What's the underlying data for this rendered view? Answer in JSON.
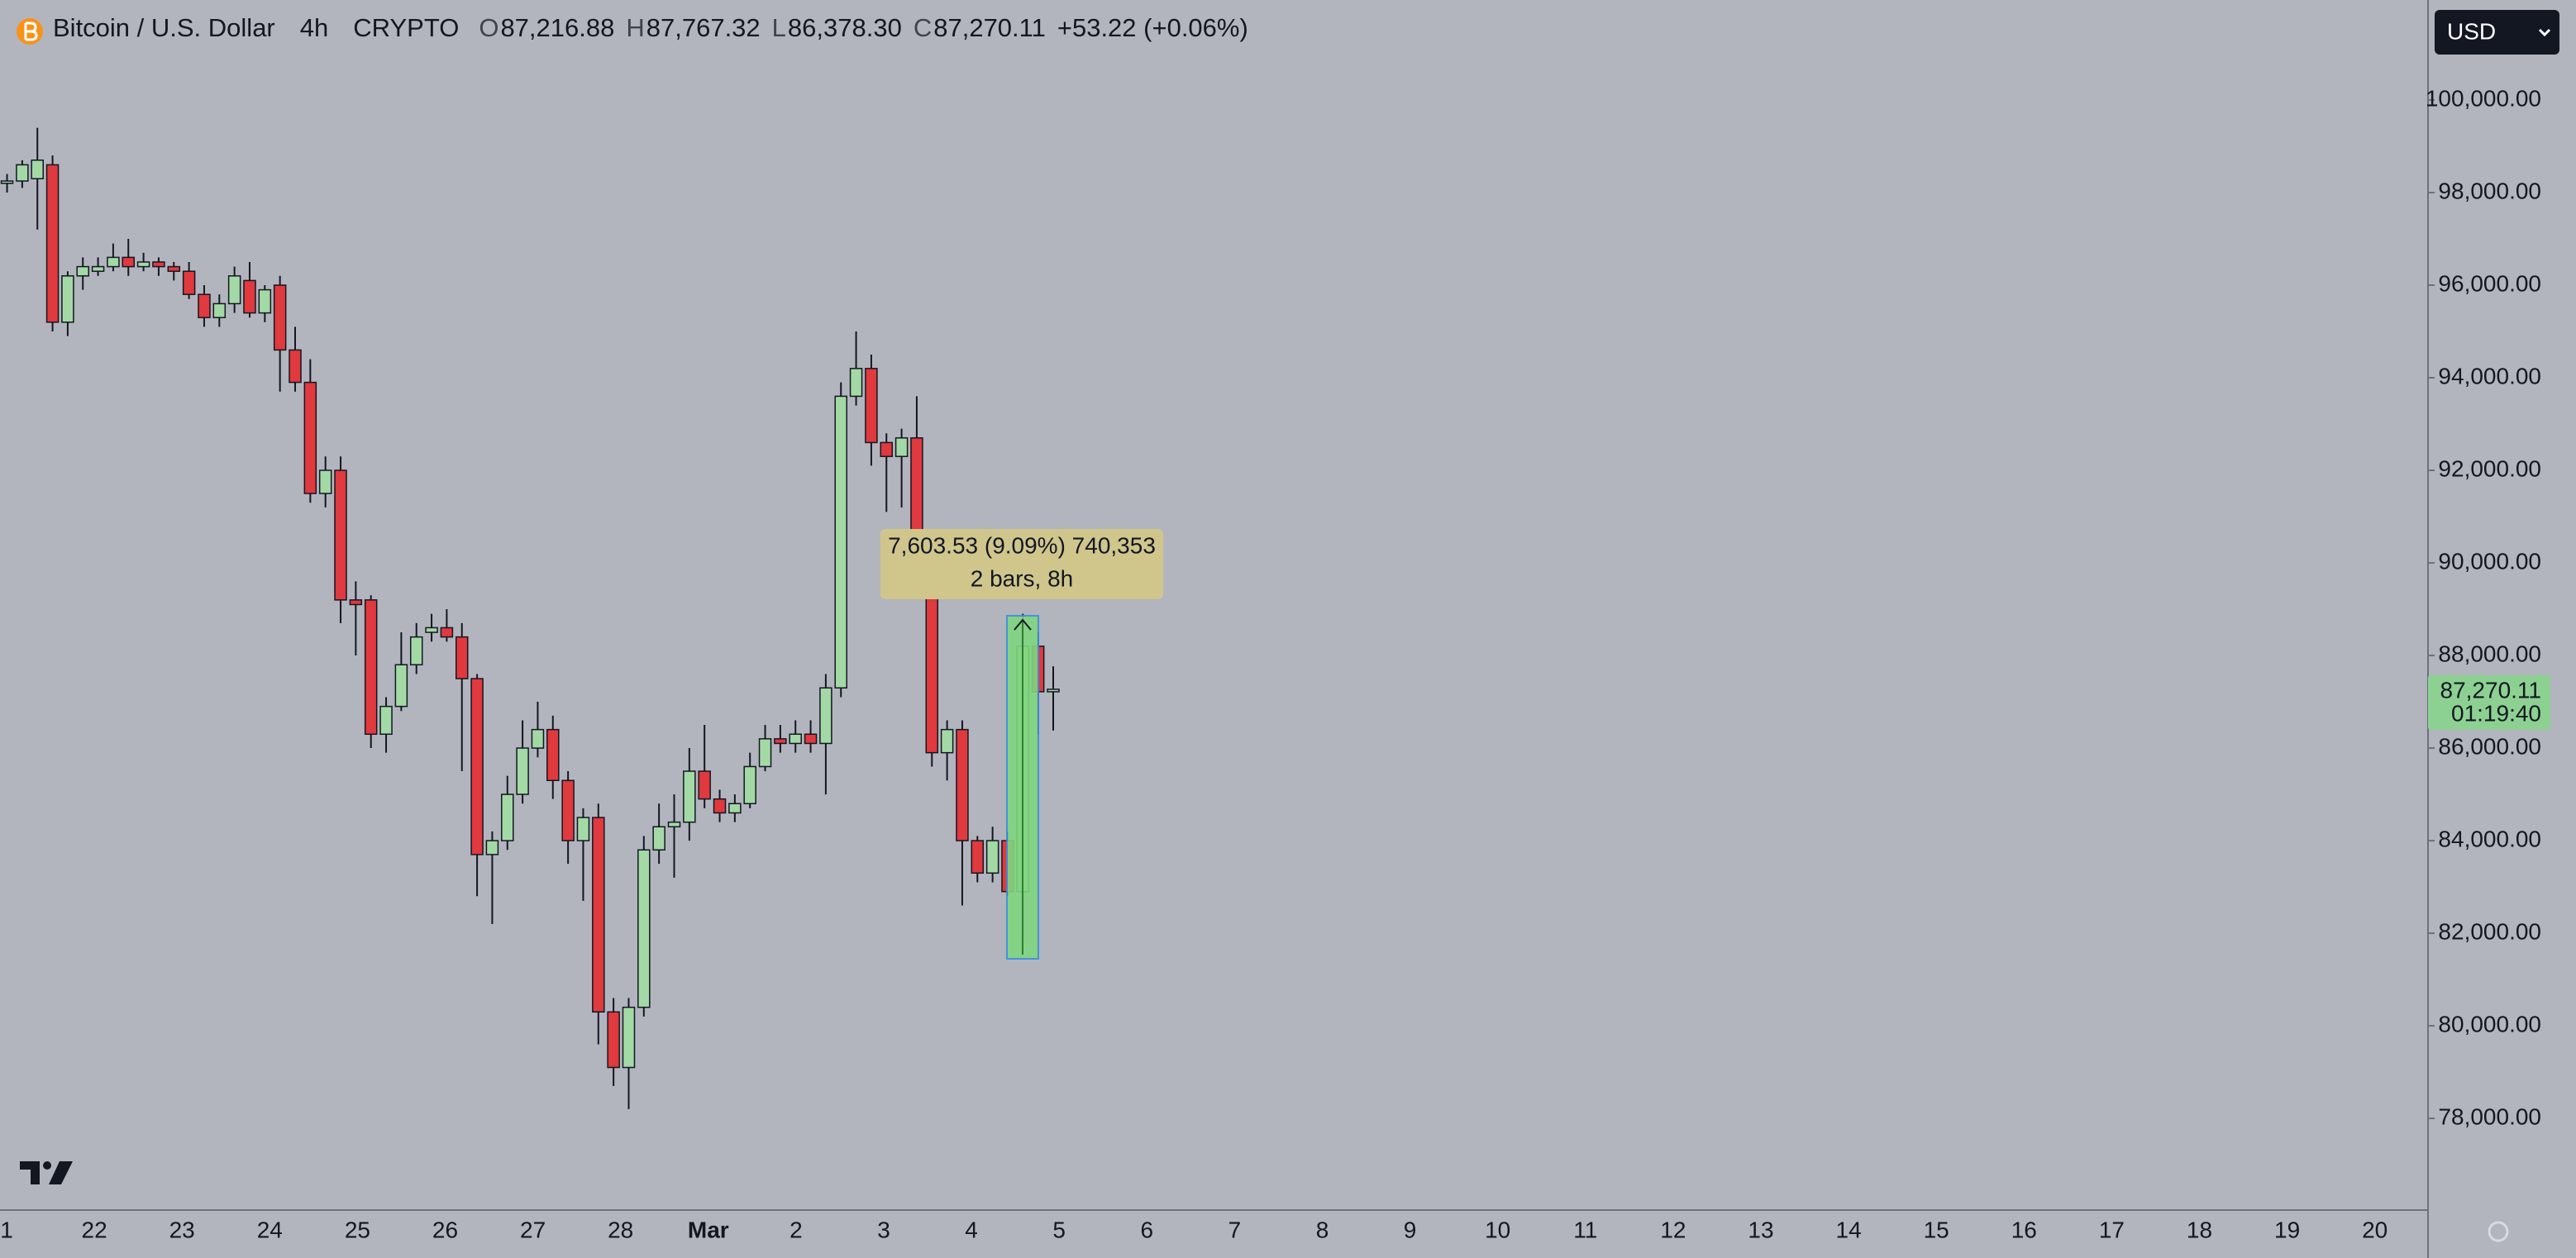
{
  "chart_data": {
    "type": "candlestick",
    "header": {
      "symbol": "Bitcoin / U.S. Dollar",
      "interval": "4h",
      "exchange": "CRYPTO",
      "legend": [
        {
          "key": "O",
          "value": "87,216.88"
        },
        {
          "key": "H",
          "value": "87,767.32"
        },
        {
          "key": "L",
          "value": "86,378.30"
        },
        {
          "key": "C",
          "value": "87,270.11"
        }
      ],
      "change": "+53.22 (+0.06%)"
    },
    "currency": "USD",
    "up_color": "#a3d9a5",
    "down_color": "#e0393e",
    "open": [
      98200,
      98250,
      98300,
      98600,
      95200,
      96200,
      96300,
      96400,
      96600,
      96400,
      96500,
      96400,
      96300,
      95800,
      95300,
      95600,
      96100,
      95400,
      96000,
      94600,
      93900,
      91500,
      92000,
      89200,
      89200,
      86300,
      86900,
      87800,
      88500,
      88600,
      88400,
      87500,
      83700,
      84000,
      85000,
      86000,
      86400,
      85300,
      84000,
      84500,
      80300,
      79100,
      80400,
      83800,
      84300,
      84400,
      85500,
      84900,
      84600,
      84800,
      85600,
      86200,
      86100,
      86300,
      86100,
      87300,
      93600,
      94200,
      92600,
      92300,
      92700,
      90100,
      85900,
      86400,
      84000,
      83300,
      84000,
      82900,
      88200,
      87216.88
    ],
    "high": [
      98400,
      98700,
      99400,
      98800,
      96300,
      96600,
      96600,
      96900,
      97000,
      96700,
      96600,
      96500,
      96500,
      96000,
      95800,
      96400,
      96500,
      96000,
      96200,
      95100,
      94400,
      92300,
      92300,
      89600,
      89300,
      87100,
      88500,
      88700,
      88900,
      89000,
      88700,
      87600,
      84200,
      85400,
      86600,
      87000,
      86700,
      85500,
      84700,
      84800,
      80600,
      80600,
      84100,
      84800,
      85000,
      86000,
      86500,
      85100,
      85000,
      85900,
      86500,
      86500,
      86600,
      86600,
      87600,
      93900,
      95000,
      94500,
      92800,
      92900,
      93600,
      90300,
      86600,
      86600,
      84100,
      84300,
      84200,
      88900,
      88500,
      87767.32
    ],
    "low": [
      98000,
      98100,
      97200,
      95000,
      94900,
      95900,
      96200,
      96300,
      96200,
      96300,
      96200,
      96100,
      95700,
      95100,
      95100,
      95400,
      95300,
      95200,
      93700,
      93700,
      91300,
      91200,
      88700,
      88000,
      86000,
      85900,
      86800,
      87600,
      88300,
      88300,
      85500,
      82800,
      82200,
      83800,
      84800,
      85800,
      84900,
      83500,
      82700,
      79600,
      78700,
      78200,
      80200,
      83500,
      83200,
      84000,
      84700,
      84400,
      84400,
      84700,
      85500,
      85900,
      85900,
      85900,
      85000,
      87100,
      93400,
      92100,
      91100,
      91200,
      89300,
      85600,
      85300,
      82600,
      83100,
      83100,
      82800,
      81800,
      86300,
      86378.3
    ],
    "close": [
      98250,
      98600,
      98700,
      95200,
      96200,
      96400,
      96400,
      96600,
      96400,
      96500,
      96400,
      96300,
      95800,
      95300,
      95600,
      96200,
      95400,
      95900,
      94600,
      93900,
      91500,
      92000,
      89200,
      89100,
      86300,
      86900,
      87800,
      88400,
      88600,
      88400,
      87500,
      83700,
      84000,
      85000,
      86000,
      86400,
      85300,
      84000,
      84500,
      80300,
      79100,
      80400,
      83800,
      84300,
      84400,
      85500,
      84900,
      84600,
      84800,
      85600,
      86200,
      86100,
      86300,
      86100,
      87300,
      93600,
      94200,
      92600,
      92300,
      92700,
      90100,
      85900,
      86400,
      84000,
      83300,
      84000,
      82900,
      88200,
      87216.88,
      87270.11
    ],
    "ylim": [
      76020,
      102160
    ],
    "yticks": [
      {
        "value": 78000,
        "label": "78,000.00"
      },
      {
        "value": 80000,
        "label": "80,000.00"
      },
      {
        "value": 82000,
        "label": "82,000.00"
      },
      {
        "value": 84000,
        "label": "84,000.00"
      },
      {
        "value": 86000,
        "label": "86,000.00"
      },
      {
        "value": 88000,
        "label": "88,000.00"
      },
      {
        "value": 90000,
        "label": "90,000.00"
      },
      {
        "value": 92000,
        "label": "92,000.00"
      },
      {
        "value": 94000,
        "label": "94,000.00"
      },
      {
        "value": 96000,
        "label": "96,000.00"
      },
      {
        "value": 98000,
        "label": "98,000.00"
      },
      {
        "value": 100000,
        "label": "100,000.00"
      }
    ],
    "day_labels": [
      "1",
      "22",
      "23",
      "24",
      "25",
      "26",
      "27",
      "28",
      "Mar",
      "2",
      "3",
      "4",
      "5",
      "6",
      "7",
      "8",
      "9",
      "10",
      "11",
      "12",
      "13",
      "14",
      "15",
      "16",
      "17",
      "18",
      "19",
      "20"
    ],
    "current_price_label": "87,270.11",
    "countdown": "01:19:40",
    "measure": {
      "line1": "7,603.53 (9.09%) 740,353",
      "line2": "2 bars, 8h"
    }
  }
}
